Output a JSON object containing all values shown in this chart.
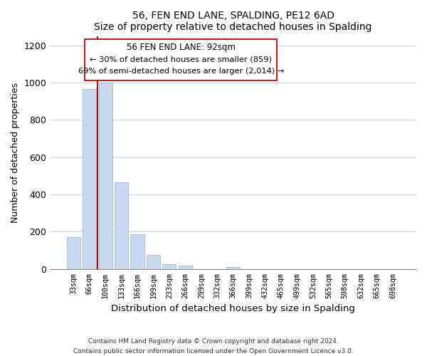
{
  "title": "56, FEN END LANE, SPALDING, PE12 6AD",
  "subtitle": "Size of property relative to detached houses in Spalding",
  "xlabel": "Distribution of detached houses by size in Spalding",
  "ylabel": "Number of detached properties",
  "bar_labels": [
    "33sqm",
    "66sqm",
    "100sqm",
    "133sqm",
    "166sqm",
    "199sqm",
    "233sqm",
    "266sqm",
    "299sqm",
    "332sqm",
    "366sqm",
    "399sqm",
    "432sqm",
    "465sqm",
    "499sqm",
    "532sqm",
    "565sqm",
    "598sqm",
    "632sqm",
    "665sqm",
    "698sqm"
  ],
  "bar_heights": [
    170,
    965,
    1000,
    465,
    185,
    75,
    25,
    20,
    0,
    0,
    10,
    0,
    0,
    0,
    0,
    0,
    0,
    0,
    0,
    0,
    0
  ],
  "bar_color": "#c8d8ee",
  "bar_edge_color": "#a0b8d8",
  "vline_x": 1.5,
  "vline_color": "#cc0000",
  "ylim": [
    0,
    1250
  ],
  "yticks": [
    0,
    200,
    400,
    600,
    800,
    1000,
    1200
  ],
  "ann_line1": "56 FEN END LANE: 92sqm",
  "ann_line2": "← 30% of detached houses are smaller (859)",
  "ann_line3": "69% of semi-detached houses are larger (2,014) →",
  "footer_line1": "Contains HM Land Registry data © Crown copyright and database right 2024.",
  "footer_line2": "Contains public sector information licensed under the Open Government Licence v3.0."
}
